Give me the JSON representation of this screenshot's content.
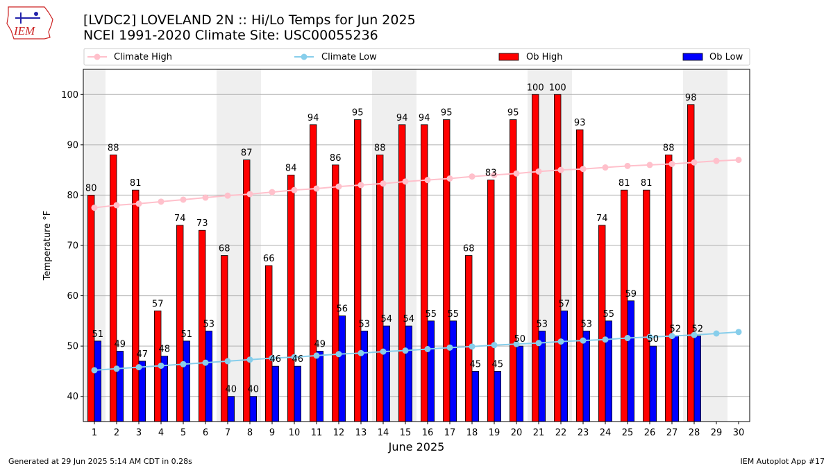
{
  "logo_text": "IEM",
  "title_line1": "[LVDC2] LOVELAND 2N :: Hi/Lo Temps for Jun 2025",
  "title_line2": "NCEI 1991-2020 Climate Site: USC00055236",
  "footer_left": "Generated at 29 Jun 2025 5:14 AM CDT in 0.28s",
  "footer_right": "IEM Autoplot App #17",
  "chart_data": {
    "type": "bar",
    "xlabel": "June 2025",
    "ylabel": "Temperature °F",
    "ylim": [
      35,
      105
    ],
    "yticks": [
      40,
      50,
      60,
      70,
      80,
      90,
      100
    ],
    "grid": true,
    "legend_placement": "top",
    "categories": [
      1,
      2,
      3,
      4,
      5,
      6,
      7,
      8,
      9,
      10,
      11,
      12,
      13,
      14,
      15,
      16,
      17,
      18,
      19,
      20,
      21,
      22,
      23,
      24,
      25,
      26,
      27,
      28,
      29,
      30
    ],
    "weekend_days": [
      1,
      7,
      8,
      14,
      15,
      21,
      22,
      28,
      29
    ],
    "series": [
      {
        "name": "Climate High",
        "kind": "line",
        "color": "#ffc0cb",
        "values": [
          77.5,
          78.0,
          78.3,
          78.7,
          79.1,
          79.5,
          79.9,
          80.2,
          80.6,
          81.0,
          81.3,
          81.7,
          82.0,
          82.3,
          82.7,
          83.0,
          83.3,
          83.7,
          84.0,
          84.3,
          84.7,
          85.0,
          85.2,
          85.5,
          85.8,
          86.0,
          86.2,
          86.5,
          86.8,
          87.0
        ]
      },
      {
        "name": "Climate Low",
        "kind": "line",
        "color": "#87ceeb",
        "values": [
          45.2,
          45.5,
          45.8,
          46.1,
          46.4,
          46.7,
          47.0,
          47.3,
          47.6,
          47.8,
          48.1,
          48.4,
          48.6,
          48.9,
          49.1,
          49.4,
          49.7,
          49.9,
          50.2,
          50.4,
          50.6,
          50.9,
          51.1,
          51.3,
          51.6,
          51.8,
          52.0,
          52.2,
          52.5,
          52.8
        ]
      },
      {
        "name": "Ob High",
        "kind": "bar",
        "color": "#ff0000",
        "values": [
          80,
          88,
          81,
          57,
          74,
          73,
          68,
          87,
          66,
          84,
          94,
          86,
          95,
          88,
          94,
          94,
          95,
          68,
          83,
          95,
          100,
          100,
          93,
          74,
          81,
          81,
          88,
          98,
          null,
          null
        ]
      },
      {
        "name": "Ob Low",
        "kind": "bar",
        "color": "#0000ff",
        "values": [
          51,
          49,
          47,
          48,
          51,
          53,
          40,
          40,
          46,
          46,
          49,
          56,
          53,
          54,
          54,
          55,
          55,
          45,
          45,
          50,
          53,
          57,
          53,
          55,
          59,
          50,
          52,
          52,
          null,
          null
        ]
      }
    ]
  }
}
